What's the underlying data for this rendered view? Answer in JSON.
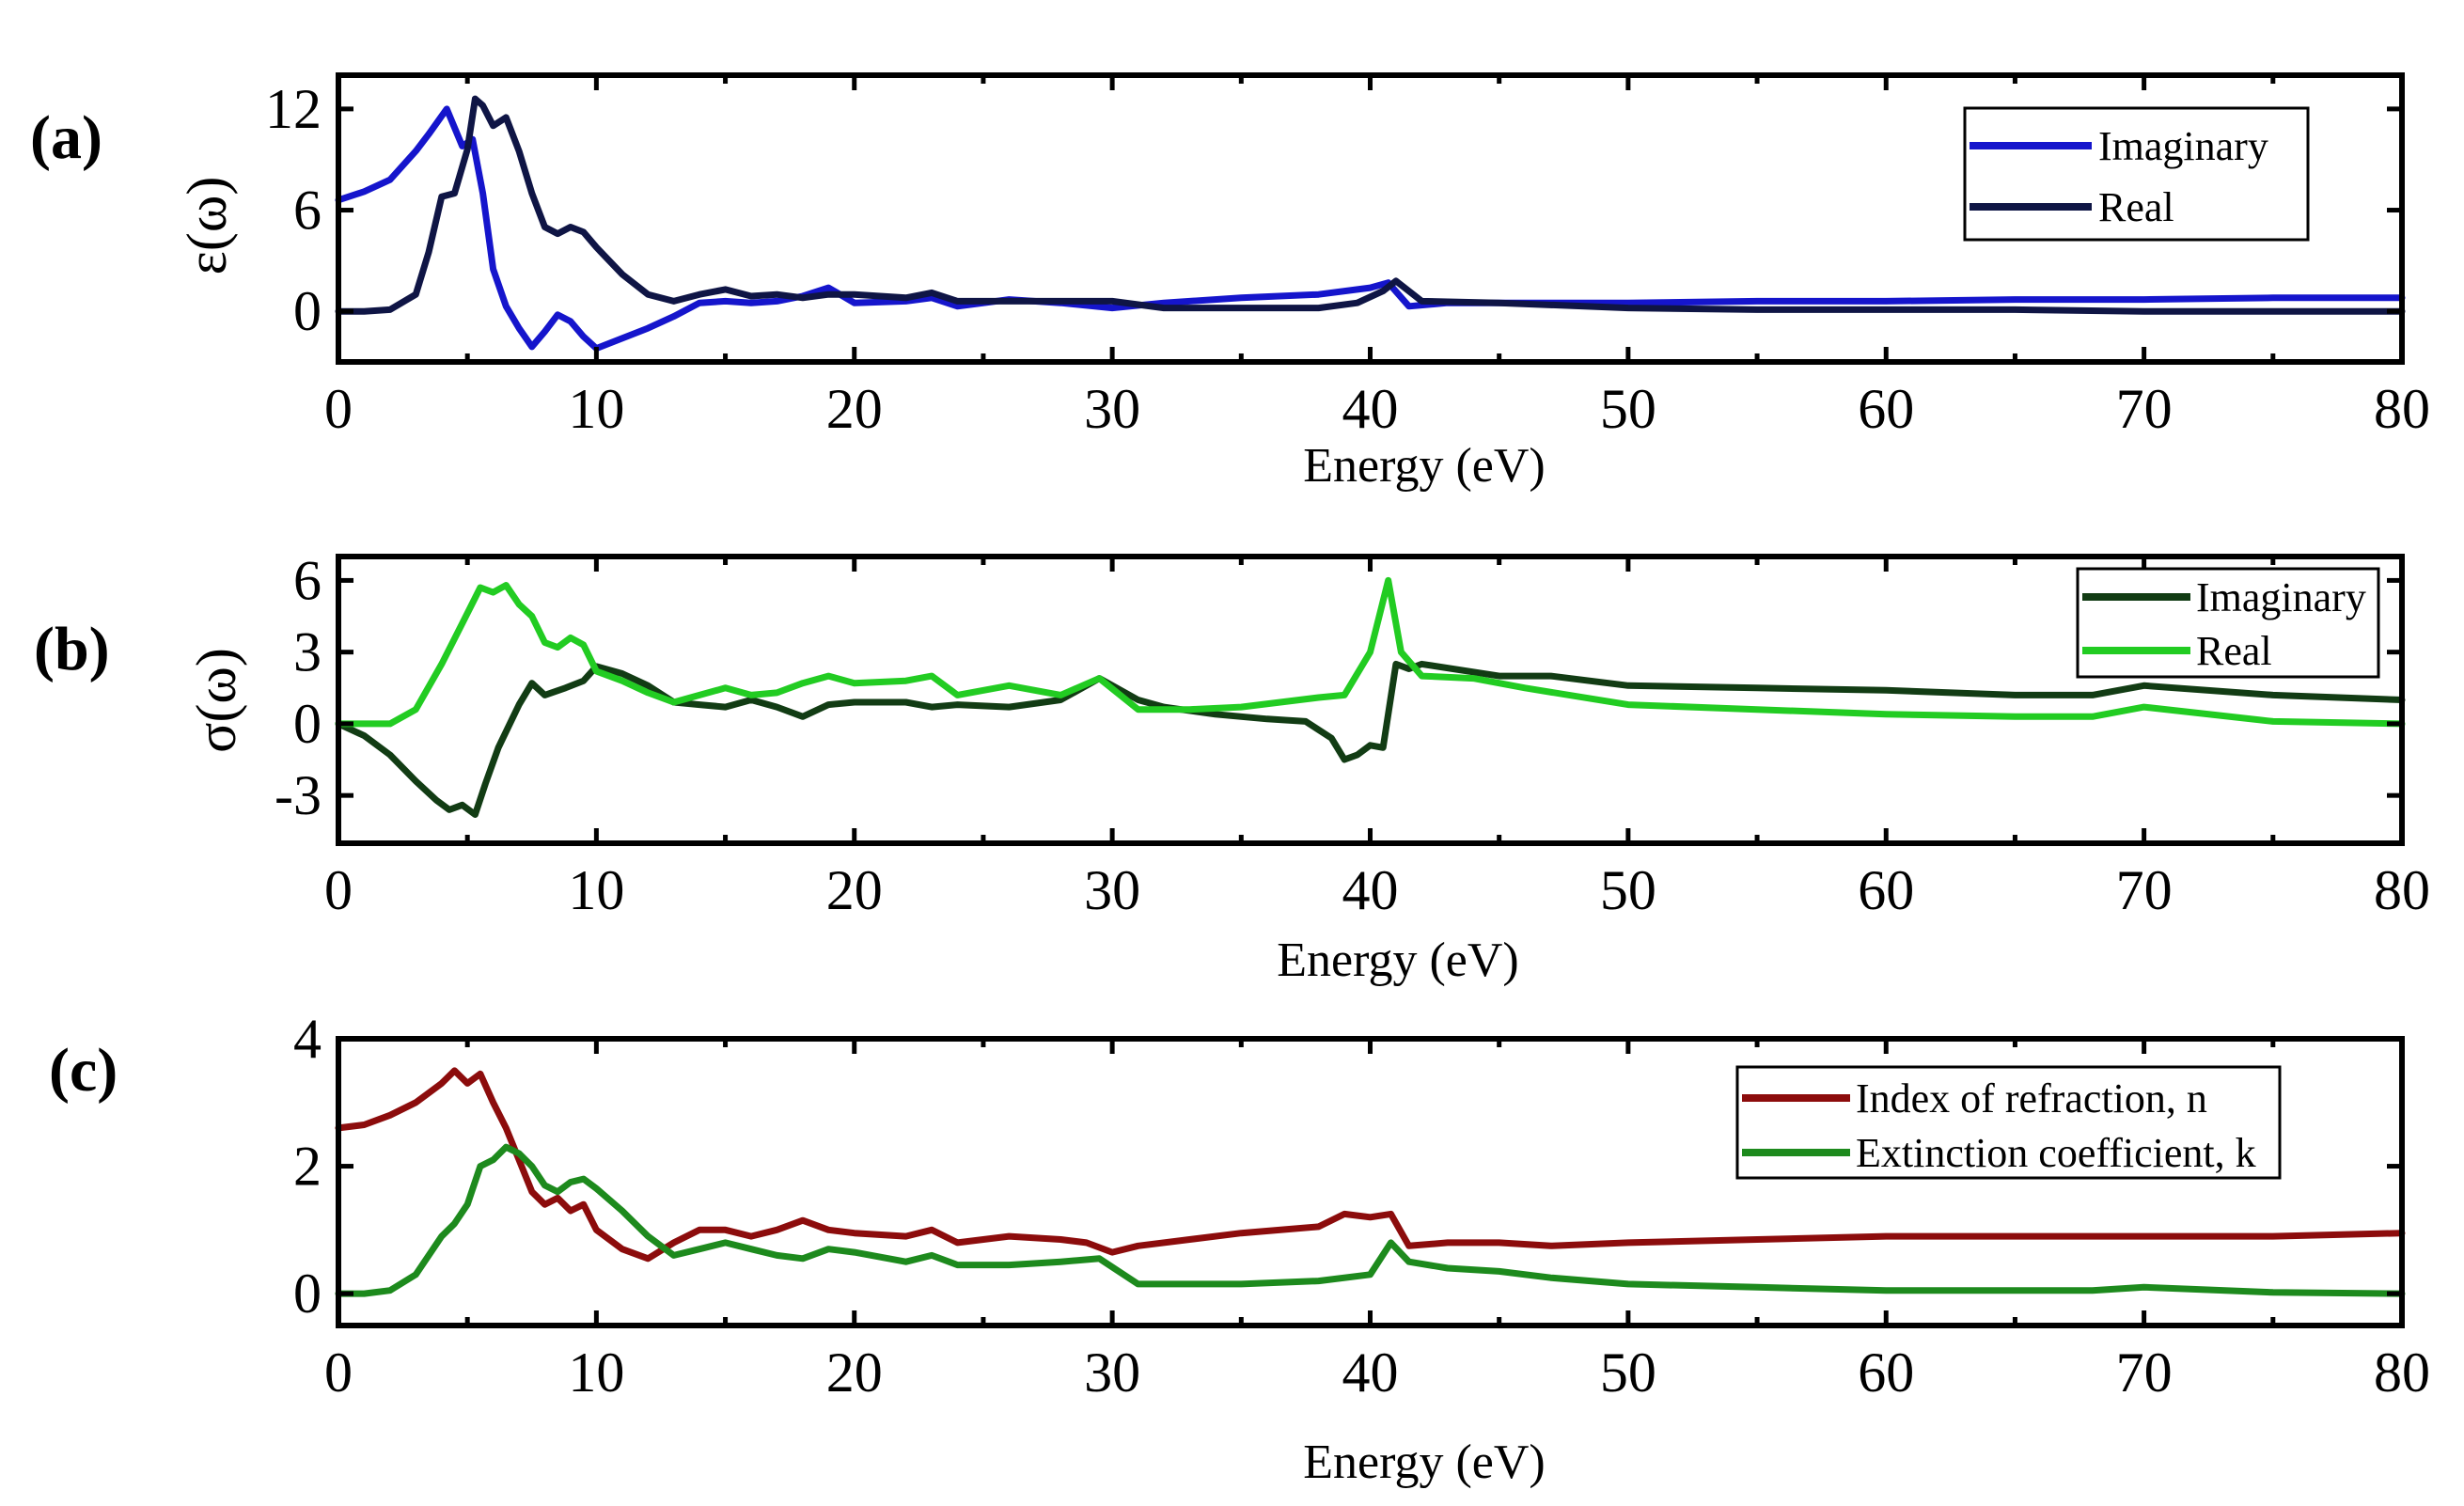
{
  "figure": {
    "panels": [
      "(a)",
      "(b)",
      "(c)"
    ]
  },
  "chart_data": [
    {
      "type": "line",
      "panel_label": "(a)",
      "title": "",
      "xlabel": "Energy (eV)",
      "ylabel": "ε(ω)",
      "xlim": [
        0,
        80
      ],
      "ylim": [
        -3,
        14
      ],
      "xticks": [
        0,
        10,
        20,
        30,
        40,
        50,
        60,
        70,
        80
      ],
      "yticks": [
        0,
        6,
        12
      ],
      "legend_position": "top-right",
      "series": [
        {
          "name": "Imaginary",
          "color": "#1515cc",
          "x": [
            0,
            1,
            2,
            3,
            3.5,
            4.2,
            4.8,
            5.2,
            5.6,
            6.0,
            6.5,
            7.0,
            7.5,
            8.0,
            8.5,
            9.0,
            9.5,
            10.0,
            11.0,
            12.0,
            13.0,
            14.0,
            15.0,
            16.0,
            17.0,
            18.0,
            19.0,
            20.0,
            22.0,
            23.0,
            24.0,
            26.0,
            28.0,
            30.0,
            32.0,
            35.0,
            38.0,
            40.0,
            40.7,
            41.5,
            43.0,
            45.0,
            50.0,
            55.0,
            60.0,
            65.0,
            70.0,
            75.0,
            80.0
          ],
          "y": [
            6.6,
            7.1,
            7.8,
            9.5,
            10.5,
            12.0,
            9.8,
            10.2,
            7.0,
            2.5,
            0.3,
            -1.0,
            -2.1,
            -1.2,
            -0.2,
            -0.6,
            -1.5,
            -2.2,
            -1.6,
            -1.0,
            -0.3,
            0.5,
            0.6,
            0.5,
            0.6,
            0.9,
            1.4,
            0.5,
            0.6,
            0.8,
            0.3,
            0.7,
            0.5,
            0.2,
            0.5,
            0.8,
            1.0,
            1.4,
            1.7,
            0.3,
            0.5,
            0.5,
            0.5,
            0.6,
            0.6,
            0.7,
            0.7,
            0.8,
            0.8
          ]
        },
        {
          "name": "Real",
          "color": "#0f1545",
          "x": [
            0,
            1,
            2,
            3,
            3.5,
            4.0,
            4.5,
            5.0,
            5.3,
            5.6,
            6.0,
            6.5,
            7.0,
            7.5,
            8.0,
            8.5,
            9.0,
            9.5,
            10.0,
            11.0,
            12.0,
            13.0,
            14.0,
            15.0,
            16.0,
            17.0,
            18.0,
            19.0,
            20.0,
            22.0,
            23.0,
            24.0,
            26.0,
            28.0,
            30.0,
            32.0,
            35.0,
            38.0,
            39.5,
            40.5,
            41.0,
            42.0,
            45.0,
            50.0,
            55.0,
            60.0,
            65.0,
            70.0,
            75.0,
            80.0
          ],
          "y": [
            0,
            0,
            0.1,
            1.0,
            3.5,
            6.8,
            7.0,
            9.6,
            12.6,
            12.2,
            11.0,
            11.5,
            9.5,
            7.0,
            5.0,
            4.6,
            5.0,
            4.7,
            3.8,
            2.2,
            1.0,
            0.6,
            1.0,
            1.3,
            0.9,
            1.0,
            0.8,
            1.0,
            1.0,
            0.8,
            1.1,
            0.6,
            0.6,
            0.6,
            0.6,
            0.2,
            0.2,
            0.2,
            0.5,
            1.2,
            1.8,
            0.6,
            0.5,
            0.2,
            0.1,
            0.1,
            0.1,
            0.0,
            0.0,
            0.0
          ]
        }
      ]
    },
    {
      "type": "line",
      "panel_label": "(b)",
      "title": "",
      "xlabel": "Energy (eV)",
      "ylabel": "σ(ω)",
      "xlim": [
        0,
        80
      ],
      "ylim": [
        -5,
        7
      ],
      "xticks": [
        0,
        10,
        20,
        30,
        40,
        50,
        60,
        70,
        80
      ],
      "yticks": [
        -3,
        0,
        3,
        6
      ],
      "legend_position": "top-right",
      "series": [
        {
          "name": "Imaginary",
          "color": "#123c14",
          "x": [
            0,
            1,
            2,
            3,
            3.8,
            4.3,
            4.8,
            5.3,
            5.7,
            6.2,
            7.0,
            7.5,
            8.0,
            8.8,
            9.5,
            10.0,
            11.0,
            12.0,
            13.0,
            14.0,
            15.0,
            16.0,
            17.0,
            18.0,
            19.0,
            20.0,
            22.0,
            23.0,
            24.0,
            26.0,
            28.0,
            29.5,
            31.0,
            32.0,
            34.0,
            36.0,
            37.5,
            38.5,
            39.0,
            39.5,
            40.0,
            40.5,
            41.0,
            41.5,
            42.0,
            45.0,
            47.0,
            50.0,
            55.0,
            60.0,
            65.0,
            68.0,
            70.0,
            75.0,
            80.0
          ],
          "y": [
            0,
            -0.5,
            -1.3,
            -2.4,
            -3.2,
            -3.6,
            -3.4,
            -3.8,
            -2.5,
            -1.0,
            0.8,
            1.7,
            1.2,
            1.5,
            1.8,
            2.4,
            2.1,
            1.6,
            0.9,
            0.8,
            0.7,
            1.0,
            0.7,
            0.3,
            0.8,
            0.9,
            0.9,
            0.7,
            0.8,
            0.7,
            1.0,
            1.9,
            1.0,
            0.7,
            0.4,
            0.2,
            0.1,
            -0.6,
            -1.5,
            -1.3,
            -0.9,
            -1.0,
            2.5,
            2.3,
            2.5,
            2.0,
            2.0,
            1.6,
            1.5,
            1.4,
            1.2,
            1.2,
            1.6,
            1.2,
            1.0
          ]
        },
        {
          "name": "Real",
          "color": "#22cc22",
          "x": [
            0,
            1,
            2,
            3,
            4,
            4.8,
            5.5,
            6.0,
            6.5,
            7.0,
            7.5,
            8.0,
            8.5,
            9.0,
            9.5,
            10.0,
            11.0,
            12.0,
            13.0,
            14.0,
            15.0,
            16.0,
            17.0,
            18.0,
            19.0,
            20.0,
            22.0,
            23.0,
            24.0,
            26.0,
            28.0,
            29.5,
            31.0,
            33.0,
            35.0,
            38.0,
            39.0,
            40.0,
            40.7,
            41.2,
            42.0,
            44.0,
            46.0,
            50.0,
            55.0,
            60.0,
            65.0,
            68.0,
            70.0,
            75.0,
            80.0
          ],
          "y": [
            0,
            0,
            0,
            0.6,
            2.5,
            4.2,
            5.7,
            5.5,
            5.8,
            5.0,
            4.5,
            3.4,
            3.2,
            3.6,
            3.3,
            2.2,
            1.8,
            1.3,
            0.9,
            1.2,
            1.5,
            1.2,
            1.3,
            1.7,
            2.0,
            1.7,
            1.8,
            2.0,
            1.2,
            1.6,
            1.2,
            1.9,
            0.6,
            0.6,
            0.7,
            1.1,
            1.2,
            3.0,
            6.0,
            3.0,
            2.0,
            1.9,
            1.5,
            0.8,
            0.6,
            0.4,
            0.3,
            0.3,
            0.7,
            0.1,
            0.0
          ]
        }
      ]
    },
    {
      "type": "line",
      "panel_label": "(c)",
      "title": "",
      "xlabel": "Energy (eV)",
      "ylabel": "",
      "xlim": [
        0,
        80
      ],
      "ylim": [
        -0.5,
        4
      ],
      "xticks": [
        0,
        10,
        20,
        30,
        40,
        50,
        60,
        70,
        80
      ],
      "yticks": [
        0,
        2,
        4
      ],
      "legend_position": "top-right",
      "series": [
        {
          "name": "Index of refraction, n",
          "color": "#8c0c0c",
          "x": [
            0,
            1,
            2,
            3,
            4,
            4.5,
            5.0,
            5.5,
            6.0,
            6.5,
            7.0,
            7.5,
            8.0,
            8.5,
            9.0,
            9.5,
            10.0,
            11.0,
            12.0,
            13.0,
            14.0,
            15.0,
            16.0,
            17.0,
            18.0,
            19.0,
            20.0,
            22.0,
            23.0,
            24.0,
            26.0,
            28.0,
            29.0,
            30.0,
            31.0,
            33.0,
            35.0,
            38.0,
            39.0,
            40.0,
            40.8,
            41.5,
            43.0,
            45.0,
            47.0,
            50.0,
            55.0,
            60.0,
            65.0,
            70.0,
            75.0,
            80.0
          ],
          "y": [
            2.6,
            2.65,
            2.8,
            3.0,
            3.3,
            3.5,
            3.3,
            3.45,
            3.0,
            2.6,
            2.1,
            1.6,
            1.4,
            1.5,
            1.3,
            1.4,
            1.0,
            0.7,
            0.55,
            0.8,
            1.0,
            1.0,
            0.9,
            1.0,
            1.15,
            1.0,
            0.95,
            0.9,
            1.0,
            0.8,
            0.9,
            0.85,
            0.8,
            0.65,
            0.75,
            0.85,
            0.95,
            1.05,
            1.25,
            1.2,
            1.25,
            0.75,
            0.8,
            0.8,
            0.75,
            0.8,
            0.85,
            0.9,
            0.9,
            0.9,
            0.9,
            0.95
          ]
        },
        {
          "name": "Extinction coefficient, k",
          "color": "#1d8a1d",
          "x": [
            0,
            1,
            2,
            3,
            4,
            4.5,
            5.0,
            5.5,
            6.0,
            6.5,
            7.0,
            7.5,
            8.0,
            8.5,
            9.0,
            9.5,
            10.0,
            11.0,
            12.0,
            13.0,
            14.0,
            15.0,
            16.0,
            17.0,
            18.0,
            19.0,
            20.0,
            22.0,
            23.0,
            24.0,
            26.0,
            28.0,
            29.5,
            31.0,
            33.0,
            35.0,
            38.0,
            40.0,
            40.8,
            41.5,
            43.0,
            45.0,
            47.0,
            50.0,
            55.0,
            60.0,
            65.0,
            68.0,
            70.0,
            75.0,
            80.0
          ],
          "y": [
            0,
            0,
            0.05,
            0.3,
            0.9,
            1.1,
            1.4,
            2.0,
            2.1,
            2.3,
            2.2,
            2.0,
            1.7,
            1.6,
            1.75,
            1.8,
            1.65,
            1.3,
            0.9,
            0.6,
            0.7,
            0.8,
            0.7,
            0.6,
            0.55,
            0.7,
            0.65,
            0.5,
            0.6,
            0.45,
            0.45,
            0.5,
            0.55,
            0.15,
            0.15,
            0.15,
            0.2,
            0.3,
            0.8,
            0.5,
            0.4,
            0.35,
            0.25,
            0.15,
            0.1,
            0.05,
            0.05,
            0.05,
            0.1,
            0.02,
            0.0
          ]
        }
      ]
    }
  ]
}
